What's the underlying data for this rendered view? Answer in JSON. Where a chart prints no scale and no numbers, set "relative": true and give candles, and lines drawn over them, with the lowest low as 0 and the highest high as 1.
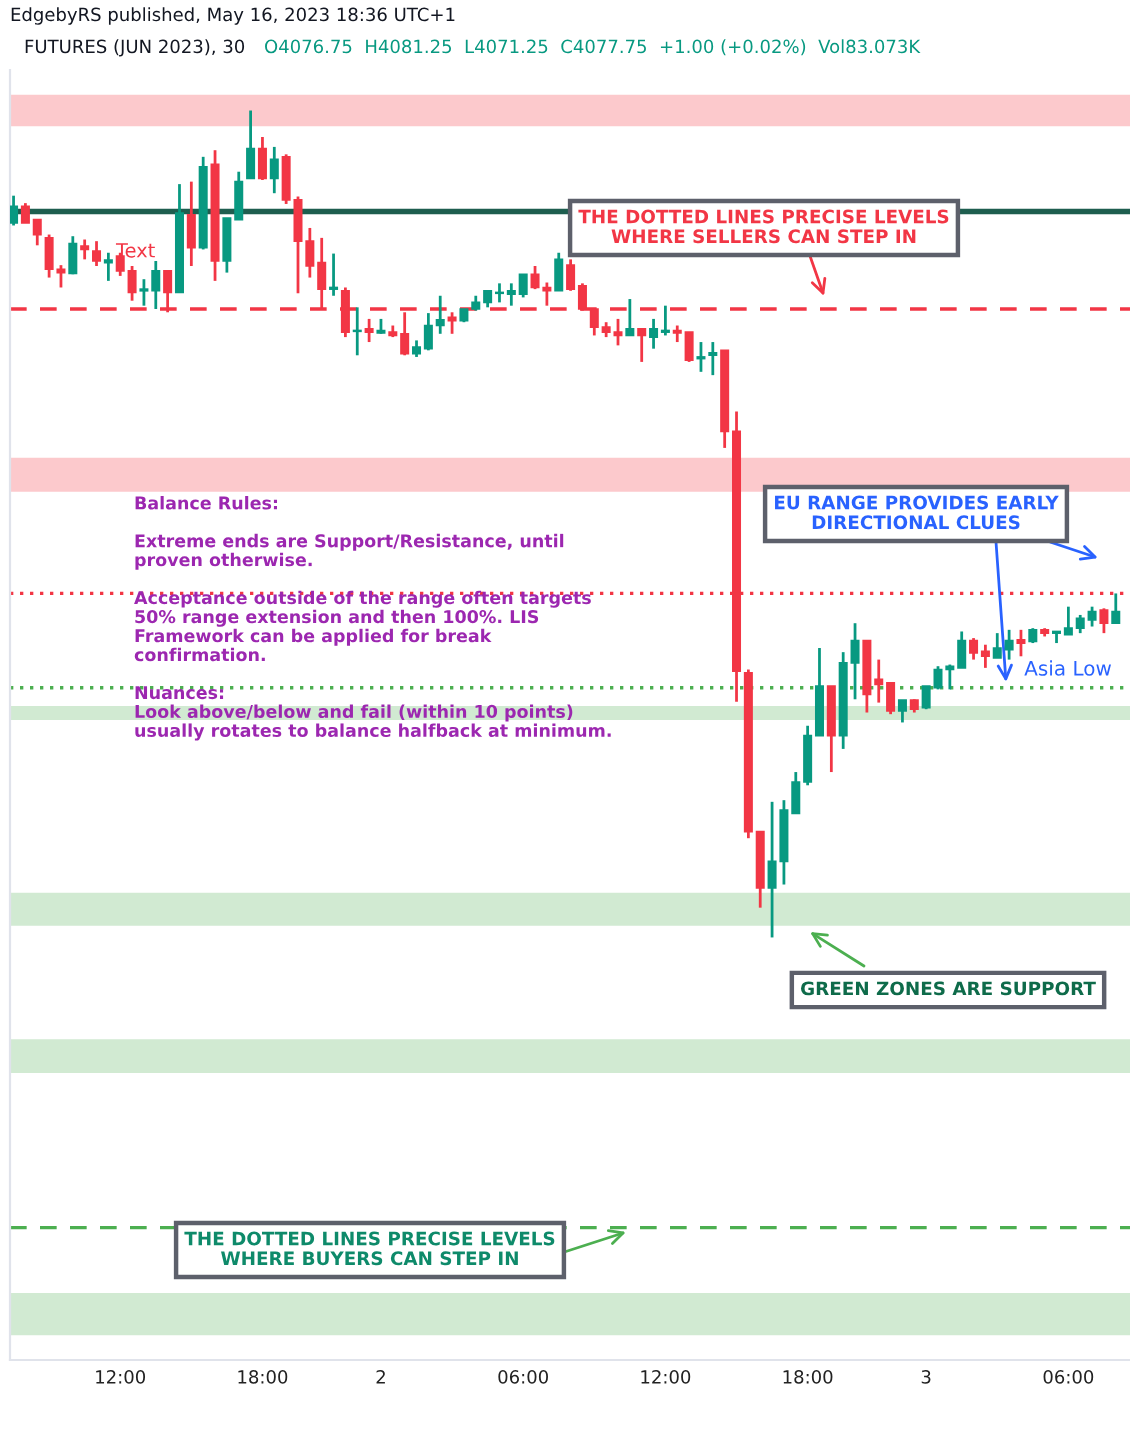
{
  "chart_data": {
    "type": "candlestick",
    "title": "FUTURES (JUN 2023), 30",
    "relative": true,
    "tick_labels": "x",
    "grid": false,
    "legend": false,
    "categories": [
      null,
      null,
      null,
      null,
      null,
      null,
      null,
      null,
      null,
      "12:00",
      null,
      null,
      null,
      null,
      null,
      null,
      null,
      null,
      null,
      null,
      null,
      "18:00",
      null,
      null,
      null,
      null,
      null,
      null,
      null,
      null,
      null,
      "2",
      null,
      null,
      null,
      null,
      null,
      null,
      null,
      null,
      null,
      null,
      null,
      "06:00",
      null,
      null,
      null,
      null,
      null,
      null,
      null,
      null,
      null,
      null,
      null,
      "12:00",
      null,
      null,
      null,
      null,
      null,
      null,
      null,
      null,
      null,
      null,
      null,
      "18:00",
      null,
      null,
      null,
      null,
      null,
      null,
      null,
      null,
      null,
      "3",
      null,
      null,
      null,
      null,
      null,
      null,
      null,
      null,
      null,
      null,
      null,
      "06:00",
      null,
      null,
      null,
      null
    ],
    "ohlc": [
      [
        0.864,
        0.897,
        0.861,
        0.884
      ],
      [
        0.884,
        0.888,
        0.864,
        0.864
      ],
      [
        0.868,
        0.868,
        0.837,
        0.85
      ],
      [
        0.846,
        0.85,
        0.798,
        0.808
      ],
      [
        0.808,
        0.813,
        0.786,
        0.804
      ],
      [
        0.803,
        0.848,
        0.802,
        0.839
      ],
      [
        0.836,
        0.844,
        0.82,
        0.832
      ],
      [
        0.83,
        0.842,
        0.812,
        0.818
      ],
      [
        0.816,
        0.828,
        0.794,
        0.819
      ],
      [
        0.824,
        0.828,
        0.8,
        0.806
      ],
      [
        0.806,
        0.812,
        0.77,
        0.78
      ],
      [
        0.782,
        0.796,
        0.764,
        0.784
      ],
      [
        0.782,
        0.818,
        0.76,
        0.806
      ],
      [
        0.806,
        0.806,
        0.756,
        0.78
      ],
      [
        0.78,
        0.911,
        0.78,
        0.876
      ],
      [
        0.874,
        0.914,
        0.812,
        0.834
      ],
      [
        0.834,
        0.944,
        0.832,
        0.932
      ],
      [
        0.935,
        0.952,
        0.794,
        0.818
      ],
      [
        0.818,
        0.87,
        0.804,
        0.87
      ],
      [
        0.868,
        0.926,
        0.868,
        0.914
      ],
      [
        0.918,
        1.0,
        0.918,
        0.954
      ],
      [
        0.954,
        0.968,
        0.916,
        0.918
      ],
      [
        0.918,
        0.956,
        0.9,
        0.941
      ],
      [
        0.944,
        0.947,
        0.887,
        0.892
      ],
      [
        0.892,
        0.896,
        0.779,
        0.842
      ],
      [
        0.842,
        0.858,
        0.798,
        0.812
      ],
      [
        0.816,
        0.846,
        0.76,
        0.784
      ],
      [
        0.784,
        0.827,
        0.776,
        0.786
      ],
      [
        0.782,
        0.786,
        0.726,
        0.732
      ],
      [
        0.733,
        0.762,
        0.704,
        0.734
      ],
      [
        0.736,
        0.748,
        0.72,
        0.732
      ],
      [
        0.731,
        0.748,
        0.73,
        0.734
      ],
      [
        0.732,
        0.74,
        0.726,
        0.728
      ],
      [
        0.73,
        0.756,
        0.704,
        0.706
      ],
      [
        0.706,
        0.722,
        0.702,
        0.714
      ],
      [
        0.712,
        0.755,
        0.71,
        0.74
      ],
      [
        0.74,
        0.776,
        0.73,
        0.747
      ],
      [
        0.75,
        0.756,
        0.73,
        0.746
      ],
      [
        0.746,
        0.76,
        0.744,
        0.76
      ],
      [
        0.76,
        0.776,
        0.758,
        0.768
      ],
      [
        0.768,
        0.782,
        0.762,
        0.782
      ],
      [
        0.779,
        0.791,
        0.768,
        0.78
      ],
      [
        0.778,
        0.791,
        0.764,
        0.782
      ],
      [
        0.778,
        0.802,
        0.774,
        0.802
      ],
      [
        0.802,
        0.812,
        0.784,
        0.786
      ],
      [
        0.786,
        0.792,
        0.764,
        0.782
      ],
      [
        0.782,
        0.828,
        0.782,
        0.82
      ],
      [
        0.813,
        0.82,
        0.782,
        0.784
      ],
      [
        0.788,
        0.791,
        0.758,
        0.76
      ],
      [
        0.76,
        0.76,
        0.728,
        0.738
      ],
      [
        0.738,
        0.744,
        0.726,
        0.732
      ],
      [
        0.732,
        0.748,
        0.716,
        0.728
      ],
      [
        0.728,
        0.772,
        0.728,
        0.736
      ],
      [
        0.736,
        0.736,
        0.696,
        0.728
      ],
      [
        0.726,
        0.748,
        0.712,
        0.736
      ],
      [
        0.732,
        0.764,
        0.728,
        0.734
      ],
      [
        0.734,
        0.74,
        0.72,
        0.731
      ],
      [
        0.732,
        0.732,
        0.696,
        0.698
      ],
      [
        0.7,
        0.72,
        0.684,
        0.702
      ],
      [
        0.704,
        0.72,
        0.68,
        0.707
      ],
      [
        0.71,
        0.71,
        0.592,
        0.612
      ],
      [
        0.612,
        0.636,
        0.285,
        0.322
      ],
      [
        0.32,
        0.324,
        0.12,
        0.128
      ],
      [
        0.128,
        0.128,
        0.036,
        0.06
      ],
      [
        0.06,
        0.164,
        0.0,
        0.092
      ],
      [
        0.092,
        0.166,
        0.064,
        0.154
      ],
      [
        0.15,
        0.2,
        0.15,
        0.188
      ],
      [
        0.188,
        0.256,
        0.184,
        0.244
      ],
      [
        0.244,
        0.35,
        0.244,
        0.304
      ],
      [
        0.304,
        0.304,
        0.2,
        0.244
      ],
      [
        0.244,
        0.345,
        0.228,
        0.332
      ],
      [
        0.332,
        0.38,
        0.288,
        0.359
      ],
      [
        0.359,
        0.359,
        0.272,
        0.294
      ],
      [
        0.312,
        0.336,
        0.284,
        0.306
      ],
      [
        0.308,
        0.308,
        0.27,
        0.274
      ],
      [
        0.274,
        0.287,
        0.26,
        0.287
      ],
      [
        0.287,
        0.288,
        0.272,
        0.276
      ],
      [
        0.278,
        0.304,
        0.276,
        0.304
      ],
      [
        0.302,
        0.328,
        0.3,
        0.324
      ],
      [
        0.324,
        0.33,
        0.3,
        0.328
      ],
      [
        0.326,
        0.37,
        0.326,
        0.359
      ],
      [
        0.359,
        0.362,
        0.336,
        0.344
      ],
      [
        0.346,
        0.354,
        0.326,
        0.34
      ],
      [
        0.338,
        0.368,
        0.338,
        0.35
      ],
      [
        0.348,
        0.372,
        0.336,
        0.359
      ],
      [
        0.36,
        0.372,
        0.34,
        0.356
      ],
      [
        0.358,
        0.374,
        0.356,
        0.372
      ],
      [
        0.372,
        0.374,
        0.364,
        0.368
      ],
      [
        0.368,
        0.37,
        0.356,
        0.37
      ],
      [
        0.366,
        0.4,
        0.366,
        0.374
      ],
      [
        0.374,
        0.39,
        0.368,
        0.386
      ],
      [
        0.384,
        0.4,
        0.376,
        0.394
      ],
      [
        0.396,
        0.398,
        0.368,
        0.38
      ],
      [
        0.38,
        0.416,
        0.38,
        0.394
      ]
    ],
    "bands": [
      {
        "axis": "y",
        "from": 0.981,
        "to": 1.019,
        "color": "#fcc9cc"
      },
      {
        "axis": "y",
        "from": 0.539,
        "to": 0.58,
        "color": "#fcc9cc"
      },
      {
        "axis": "y",
        "from": 0.263,
        "to": 0.28,
        "color": "#d1ead2"
      },
      {
        "axis": "y",
        "from": 0.014,
        "to": 0.054,
        "color": "#d1ead2"
      },
      {
        "axis": "y",
        "from": -0.164,
        "to": -0.123,
        "color": "#d1ead2"
      },
      {
        "axis": "y",
        "from": -0.481,
        "to": -0.43,
        "color": "#d1ead2"
      }
    ],
    "ref_lines": [
      {
        "axis": "y",
        "value": 0.878,
        "color": "#1e5e4f",
        "line_style": "solid"
      },
      {
        "axis": "y",
        "value": 0.76,
        "color": "#f23645",
        "line_style": "dashed"
      },
      {
        "axis": "y",
        "value": 0.416,
        "color": "#f23645",
        "line_style": "dotted"
      },
      {
        "axis": "y",
        "value": 0.302,
        "color": "#4caf50",
        "line_style": "dotted"
      },
      {
        "axis": "y",
        "value": -0.351,
        "color": "#4caf50",
        "line_style": "dashed"
      }
    ],
    "annotations": [
      "EdgebyRS published, May 16, 2023 18:36 UTC+1",
      "O4076.75  H4081.25  L4071.25  C4077.75  +1.00 (+0.02%)  Vol83.073K",
      "THE DOTTED LINES PRECISE LEVELS\nWHERE SELLERS CAN STEP IN",
      "EU RANGE PROVIDES EARLY\nDIRECTIONAL CLUES",
      "Asia Low",
      "GREEN ZONES ARE SUPPORT",
      "THE DOTTED LINES PRECISE LEVELS\nWHERE BUYERS CAN STEP IN",
      "Balance Rules:\n\nExtreme ends are Support/Resistance, until\nproven otherwise.\n\nAcceptance outside of the range often targets\n50% range extension and then 100%. LIS\nFramework can be applied for break\nconfirmation.\n\nNuances:\nLook above/below and fail (within 10 points)\nusually rotates to balance halfback at minimum.",
      "Text"
    ]
  }
}
